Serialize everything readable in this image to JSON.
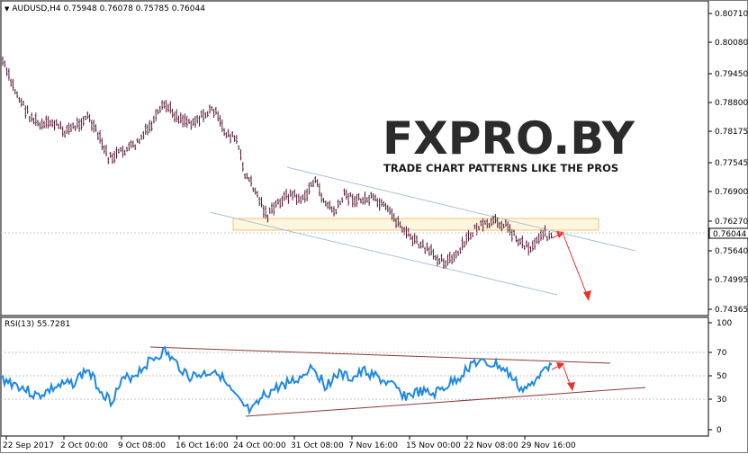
{
  "symbol_header": "AUDUSD,H4  0.75948 0.76078 0.75785 0.76044",
  "rsi_header": "RSI(13) 55.7281",
  "price_axis": [
    "0.80710",
    "0.80080",
    "0.79450",
    "0.78800",
    "0.78175",
    "0.77545",
    "0.76900",
    "0.76270",
    "0.75640",
    "0.74995",
    "0.74365"
  ],
  "current_price": "0.76044",
  "rsi_axis": [
    "100",
    "70",
    "50",
    "30",
    "0"
  ],
  "time_axis": [
    "22 Sep 2017",
    "2 Oct 00:00",
    "9 Oct 08:00",
    "16 Oct 16:00",
    "24 Oct 00:00",
    "31 Oct 08:00",
    "7 Nov 16:00",
    "15 Nov 00:00",
    "22 Nov 08:00",
    "29 Nov 16:00"
  ],
  "watermark": {
    "brand": "FXPRO.BY",
    "tagline": "TRADE CHART PATTERNS LIKE THE PROS"
  },
  "colors": {
    "bars": "#5a1a3a",
    "channel": "#a8c0dc",
    "zone": "#f5c36a",
    "arrow": "#e8322b",
    "rsi_line": "#1e88e5",
    "rsi_trend": "#8b3a3a"
  }
}
